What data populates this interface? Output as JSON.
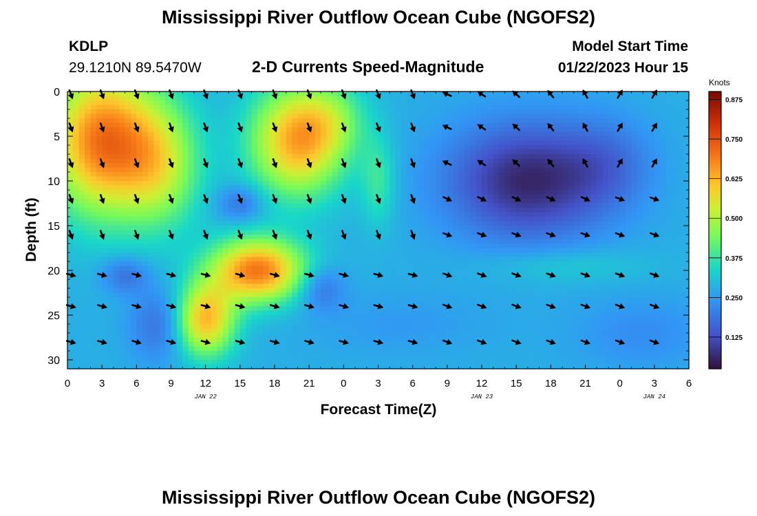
{
  "header": {
    "title": "Mississippi River Outflow Ocean Cube (NGOFS2)",
    "station_id": "KDLP",
    "coordinates": "29.1210N  89.5470W",
    "subtitle": "2-D Currents Speed-Magnitude",
    "model_start_label": "Model Start Time",
    "model_start_value": "01/22/2023 Hour 15"
  },
  "footer": {
    "title": "Mississippi River Outflow Ocean Cube (NGOFS2)"
  },
  "chart_data": {
    "type": "heatmap",
    "xlabel": "Forecast Time(Z)",
    "ylabel": "Depth (ft)",
    "x_range_hours": [
      0,
      54
    ],
    "y_range_ft": [
      0,
      31
    ],
    "y_ticks": [
      0,
      5,
      10,
      15,
      20,
      25,
      30
    ],
    "x_tick_labels": [
      "0",
      "3",
      "6",
      "9",
      "12",
      "15",
      "18",
      "21",
      "0",
      "3",
      "6",
      "9",
      "12",
      "15",
      "18",
      "21",
      "0",
      "3",
      "6"
    ],
    "date_labels": [
      {
        "label": "JAN 22",
        "at_hour": 12
      },
      {
        "label": "JAN 23",
        "at_hour": 36
      },
      {
        "label": "JAN 24",
        "at_hour": 51
      }
    ],
    "colorbar": {
      "units": "Knots",
      "min": 0.025,
      "max": 0.9,
      "tick_labels": [
        "0.875",
        "0.750",
        "0.625",
        "0.500",
        "0.375",
        "0.250",
        "0.125"
      ],
      "tick_values": [
        0.875,
        0.75,
        0.625,
        0.5,
        0.375,
        0.25,
        0.125
      ]
    },
    "arrow_depths_ft": [
      0,
      4,
      8,
      12,
      16,
      20.5,
      24,
      28
    ]
  }
}
